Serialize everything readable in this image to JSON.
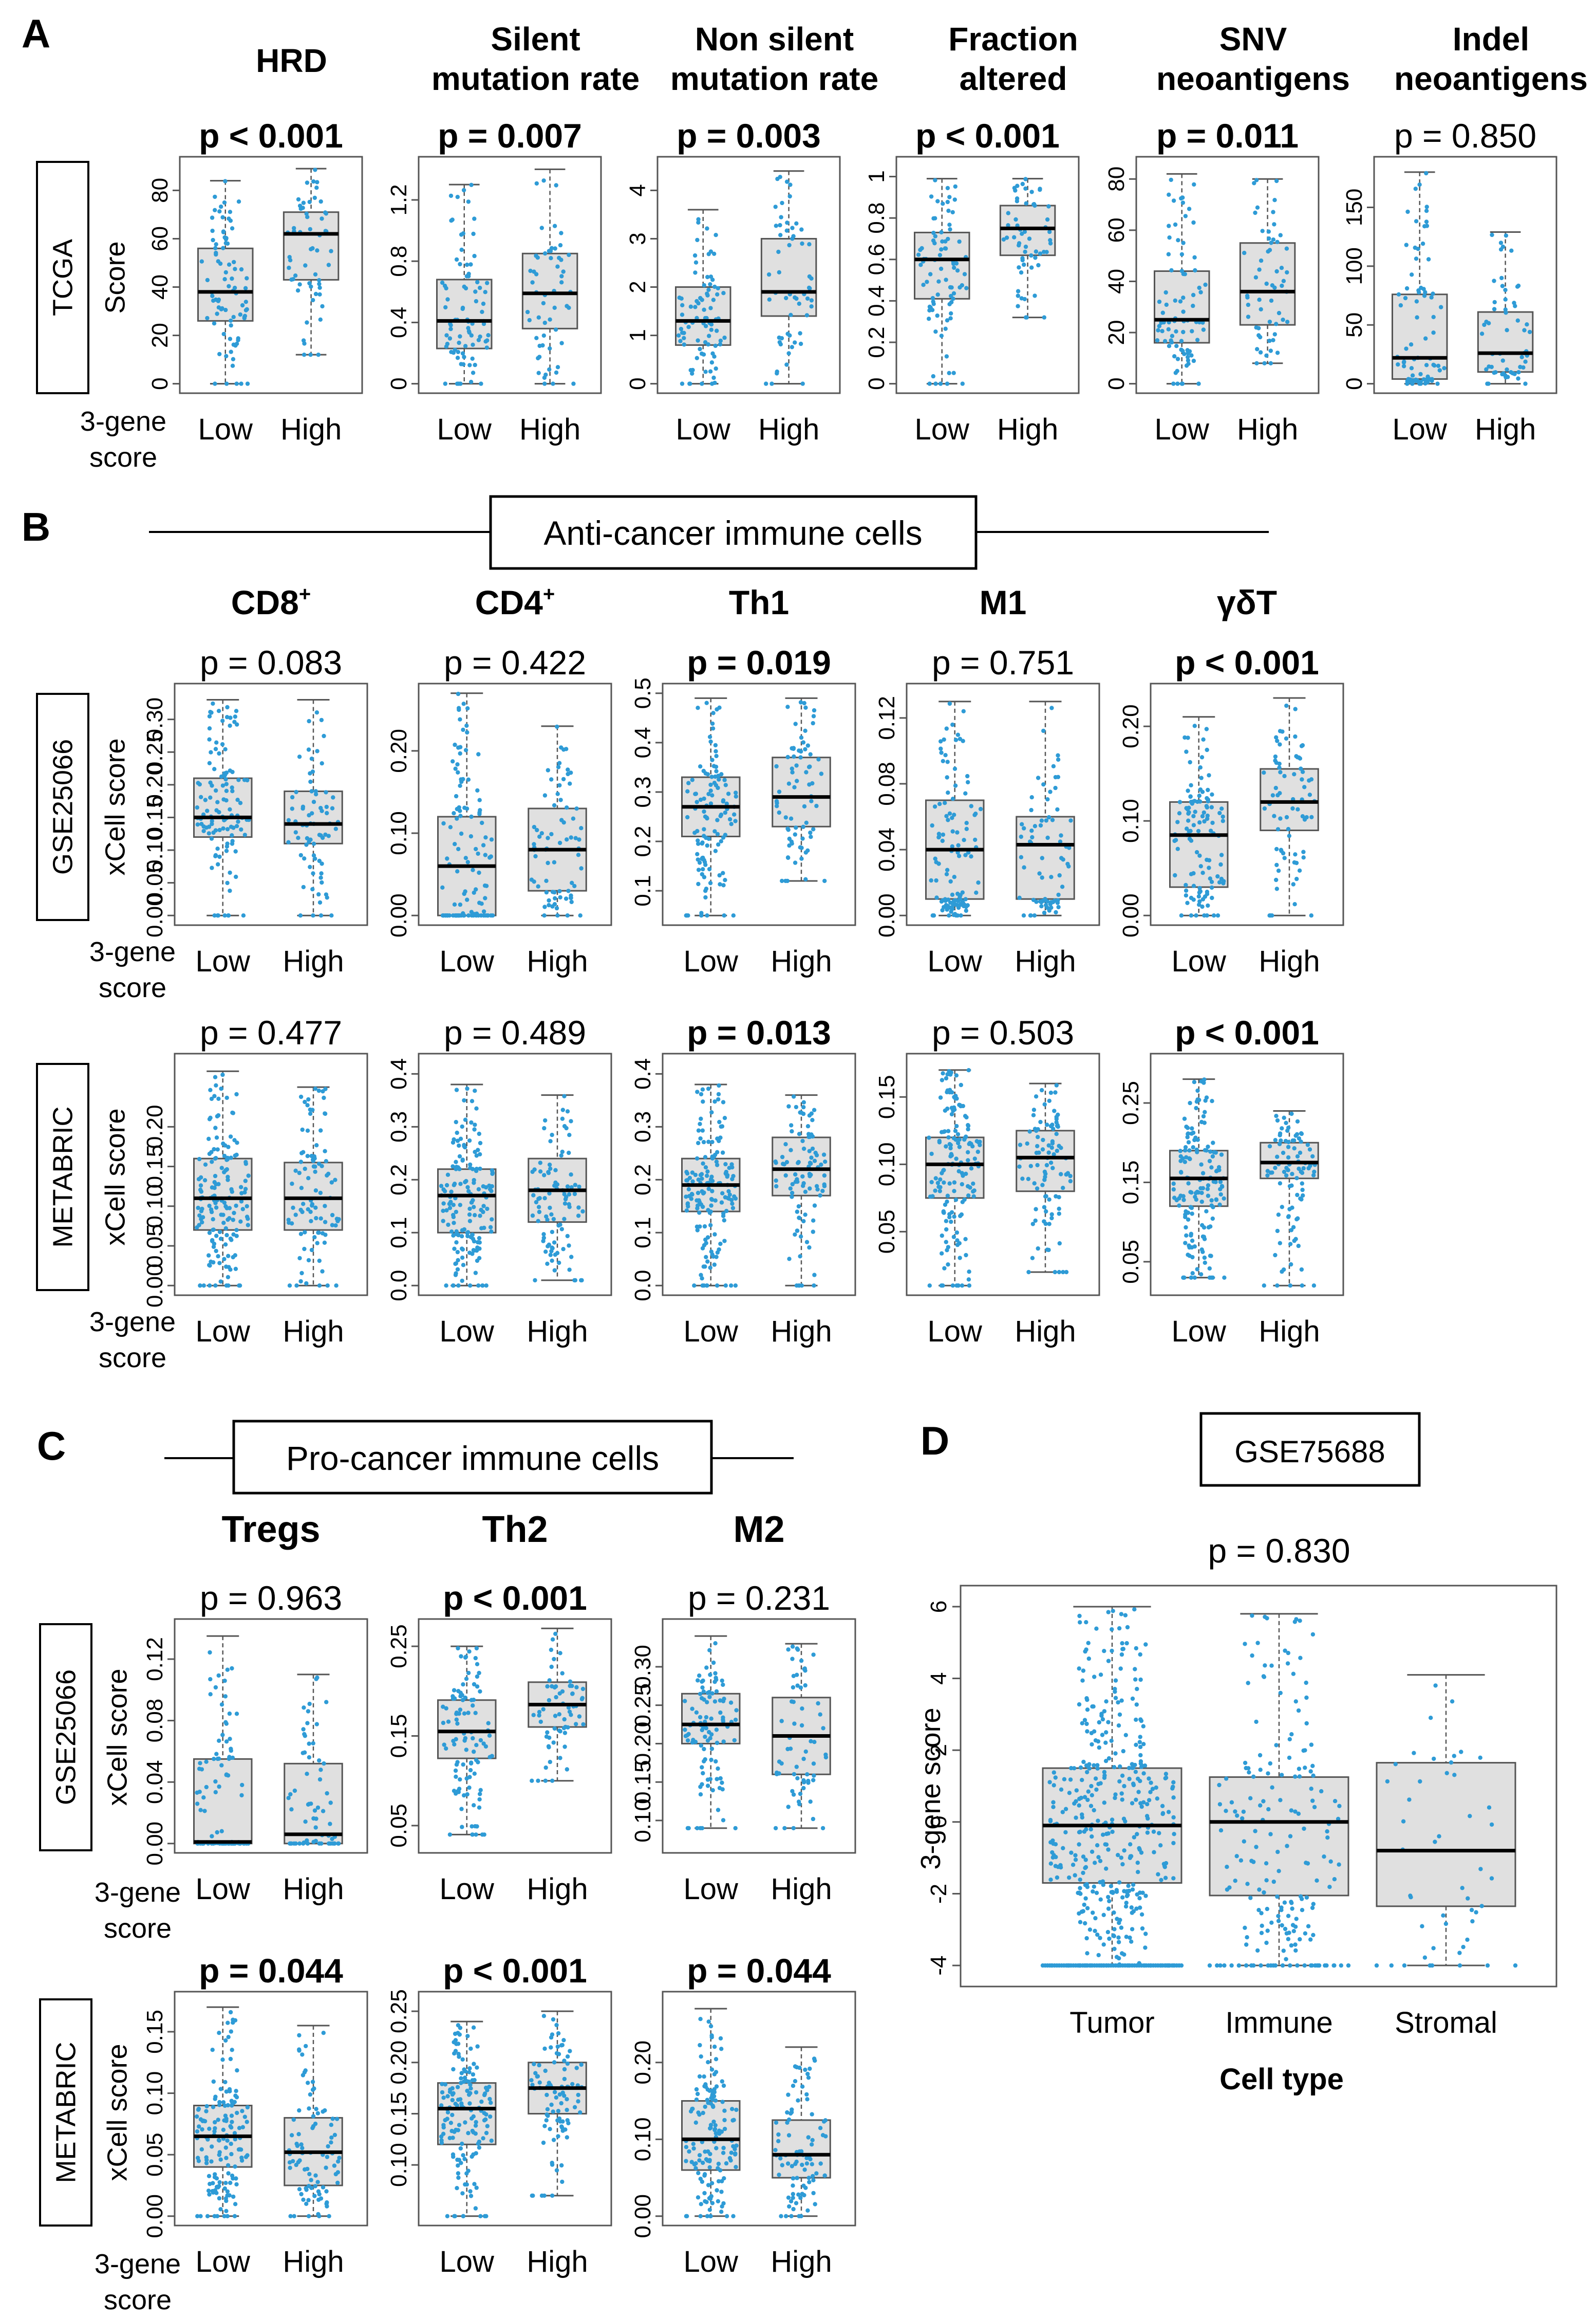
{
  "figure": {
    "palette": {
      "dot": "#2e9bd6",
      "box_fill": "#e0e0e0",
      "box_stroke": "#555555",
      "median": "#000000",
      "frame": "#555555",
      "text": "#000000"
    },
    "common": {
      "group_low": "Low",
      "group_high": "High",
      "gene_label_1": "3-gene",
      "gene_label_2": "score"
    },
    "panels": [
      {
        "letter": "A",
        "header": ""
      },
      {
        "letter": "B",
        "header": "Anti-cancer immune cells"
      },
      {
        "letter": "C",
        "header": "Pro-cancer immune cells"
      },
      {
        "letter": "D",
        "header": "GSE75688"
      }
    ],
    "row_labels": {
      "tcga": {
        "dataset": "TCGA",
        "ylabel": "Score"
      },
      "b_gse": {
        "dataset": "GSE25066",
        "ylabel": "xCell score"
      },
      "b_met": {
        "dataset": "METABRIC",
        "ylabel": "xCell score"
      },
      "c_gse": {
        "dataset": "GSE25066",
        "ylabel": "xCell score"
      },
      "c_met": {
        "dataset": "METABRIC",
        "ylabel": "xCell score"
      }
    },
    "titles": {
      "A": [
        [
          "HRD"
        ],
        [
          "Silent",
          "mutation rate"
        ],
        [
          "Non silent",
          "mutation rate"
        ],
        [
          "Fraction",
          "altered"
        ],
        [
          "SNV",
          "neoantigens"
        ],
        [
          "Indel",
          "neoantigens"
        ]
      ],
      "B": [
        [
          "CD8",
          "+"
        ],
        [
          "CD4",
          "+"
        ],
        [
          "Th1",
          ""
        ],
        [
          "M1",
          ""
        ],
        [
          "γδT",
          ""
        ]
      ],
      "C": [
        [
          "Tregs"
        ],
        [
          "Th2"
        ],
        [
          "M2"
        ]
      ]
    }
  },
  "chart_data": [
    {
      "type": "boxplot",
      "panel": "A",
      "dataset": "TCGA",
      "ylabel": "Score",
      "groups": [
        "Low",
        "High"
      ],
      "plots": [
        {
          "title": "HRD",
          "p": "p < 0.001",
          "significant": true,
          "ylim": [
            0,
            90
          ],
          "ticks": [
            0,
            20,
            40,
            60,
            80
          ],
          "low": {
            "min": 0,
            "q1": 26,
            "median": 38,
            "q3": 56,
            "max": 84
          },
          "high": {
            "min": 12,
            "q1": 43,
            "median": 62,
            "q3": 71,
            "max": 89
          }
        },
        {
          "title": "Silent mutation rate",
          "p": "p = 0.007",
          "significant": true,
          "ylim": [
            0,
            1.42
          ],
          "ticks": [
            0.0,
            0.4,
            0.8,
            1.2
          ],
          "low": {
            "min": 0.0,
            "q1": 0.23,
            "median": 0.41,
            "q3": 0.68,
            "max": 1.3
          },
          "high": {
            "min": 0.0,
            "q1": 0.36,
            "median": 0.59,
            "q3": 0.85,
            "max": 1.4
          }
        },
        {
          "title": "Non silent mutation rate",
          "p": "p = 0.003",
          "significant": true,
          "ylim": [
            0,
            4.5
          ],
          "ticks": [
            0,
            1,
            2,
            3,
            4
          ],
          "low": {
            "min": 0,
            "q1": 0.8,
            "median": 1.3,
            "q3": 2.0,
            "max": 3.6
          },
          "high": {
            "min": 0,
            "q1": 1.4,
            "median": 1.9,
            "q3": 3.0,
            "max": 4.4
          }
        },
        {
          "title": "Fraction altered",
          "p": "p < 0.001",
          "significant": true,
          "ylim": [
            0,
            1.05
          ],
          "ticks": [
            0.0,
            0.2,
            0.4,
            0.6,
            0.8,
            1.0
          ],
          "low": {
            "min": 0.0,
            "q1": 0.41,
            "median": 0.6,
            "q3": 0.73,
            "max": 0.99
          },
          "high": {
            "min": 0.32,
            "q1": 0.62,
            "median": 0.75,
            "q3": 0.86,
            "max": 0.99
          }
        },
        {
          "title": "SNV neoantigens",
          "p": "p = 0.011",
          "significant": true,
          "ylim": [
            0,
            85
          ],
          "ticks": [
            0,
            20,
            40,
            60,
            80
          ],
          "low": {
            "min": 0,
            "q1": 16,
            "median": 25,
            "q3": 44,
            "max": 82
          },
          "high": {
            "min": 8,
            "q1": 23,
            "median": 36,
            "q3": 55,
            "max": 80
          }
        },
        {
          "title": "Indel neoantigens",
          "p": "p = 0.850",
          "significant": false,
          "ylim": [
            0,
            185
          ],
          "ticks": [
            0,
            50,
            100,
            150
          ],
          "low": {
            "min": 0,
            "q1": 4,
            "median": 22,
            "q3": 76,
            "max": 180
          },
          "high": {
            "min": 0,
            "q1": 10,
            "median": 26,
            "q3": 61,
            "max": 129
          }
        }
      ]
    },
    {
      "type": "boxplot",
      "panel": "B",
      "dataset": "GSE25066",
      "ylabel": "xCell score",
      "groups": [
        "Low",
        "High"
      ],
      "plots": [
        {
          "title": "CD8+",
          "p": "p = 0.083",
          "significant": false,
          "ylim": [
            0,
            0.34
          ],
          "ticks": [
            0.0,
            0.05,
            0.1,
            0.15,
            0.2,
            0.25,
            0.3
          ],
          "tick_labels": [
            "0.00",
            "0.05",
            "0.10",
            "0.15",
            "0.20",
            "0.25",
            "0.30"
          ],
          "low": {
            "min": 0.0,
            "q1": 0.12,
            "median": 0.15,
            "q3": 0.21,
            "max": 0.33
          },
          "high": {
            "min": 0.0,
            "q1": 0.11,
            "median": 0.14,
            "q3": 0.19,
            "max": 0.33
          }
        },
        {
          "title": "CD4+",
          "p": "p = 0.422",
          "significant": false,
          "ylim": [
            0,
            0.27
          ],
          "ticks": [
            0.0,
            0.1,
            0.2
          ],
          "tick_labels": [
            "0.00",
            "0.10",
            "0.20"
          ],
          "low": {
            "min": 0.0,
            "q1": 0.0,
            "median": 0.06,
            "q3": 0.12,
            "max": 0.27
          },
          "high": {
            "min": 0.0,
            "q1": 0.03,
            "median": 0.08,
            "q3": 0.13,
            "max": 0.23
          }
        },
        {
          "title": "Th1",
          "p": "p = 0.019",
          "significant": true,
          "ylim": [
            0.05,
            0.5
          ],
          "ticks": [
            0.1,
            0.2,
            0.3,
            0.4,
            0.5
          ],
          "tick_labels": [
            "0.1",
            "0.2",
            "0.3",
            "0.4",
            "0.5"
          ],
          "low": {
            "min": 0.05,
            "q1": 0.21,
            "median": 0.27,
            "q3": 0.33,
            "max": 0.49
          },
          "high": {
            "min": 0.12,
            "q1": 0.23,
            "median": 0.29,
            "q3": 0.37,
            "max": 0.49
          }
        },
        {
          "title": "M1",
          "p": "p = 0.751",
          "significant": false,
          "ylim": [
            0,
            0.135
          ],
          "ticks": [
            0.0,
            0.04,
            0.08,
            0.12
          ],
          "tick_labels": [
            "0.00",
            "0.04",
            "0.08",
            "0.12"
          ],
          "low": {
            "min": 0.0,
            "q1": 0.01,
            "median": 0.04,
            "q3": 0.07,
            "max": 0.13
          },
          "high": {
            "min": 0.0,
            "q1": 0.01,
            "median": 0.043,
            "q3": 0.06,
            "max": 0.13
          }
        },
        {
          "title": "γδT",
          "p": "p < 0.001",
          "significant": true,
          "ylim": [
            0,
            0.235
          ],
          "ticks": [
            0.0,
            0.1,
            0.2
          ],
          "tick_labels": [
            "0.00",
            "0.10",
            "0.20"
          ],
          "low": {
            "min": 0.0,
            "q1": 0.03,
            "median": 0.085,
            "q3": 0.12,
            "max": 0.21
          },
          "high": {
            "min": 0.0,
            "q1": 0.09,
            "median": 0.12,
            "q3": 0.155,
            "max": 0.23
          }
        }
      ]
    },
    {
      "type": "boxplot",
      "panel": "B",
      "dataset": "METABRIC",
      "ylabel": "xCell score",
      "groups": [
        "Low",
        "High"
      ],
      "plots": [
        {
          "title": "CD8+",
          "p": "p = 0.477",
          "significant": false,
          "ylim": [
            0,
            0.28
          ],
          "ticks": [
            0.0,
            0.05,
            0.1,
            0.15,
            0.2
          ],
          "tick_labels": [
            "0.00",
            "0.05",
            "0.10",
            "0.15",
            "0.20"
          ],
          "low": {
            "min": 0.0,
            "q1": 0.07,
            "median": 0.11,
            "q3": 0.16,
            "max": 0.27
          },
          "high": {
            "min": 0.0,
            "q1": 0.07,
            "median": 0.11,
            "q3": 0.155,
            "max": 0.25
          }
        },
        {
          "title": "CD4+",
          "p": "p = 0.489",
          "significant": false,
          "ylim": [
            0,
            0.42
          ],
          "ticks": [
            0.0,
            0.1,
            0.2,
            0.3,
            0.4
          ],
          "tick_labels": [
            "0.0",
            "0.1",
            "0.2",
            "0.3",
            "0.4"
          ],
          "low": {
            "min": 0.0,
            "q1": 0.1,
            "median": 0.17,
            "q3": 0.22,
            "max": 0.38
          },
          "high": {
            "min": 0.01,
            "q1": 0.12,
            "median": 0.18,
            "q3": 0.24,
            "max": 0.36
          }
        },
        {
          "title": "Th1",
          "p": "p = 0.013",
          "significant": true,
          "ylim": [
            0,
            0.42
          ],
          "ticks": [
            0.0,
            0.1,
            0.2,
            0.3,
            0.4
          ],
          "tick_labels": [
            "0.0",
            "0.1",
            "0.2",
            "0.3",
            "0.4"
          ],
          "low": {
            "min": 0.0,
            "q1": 0.14,
            "median": 0.19,
            "q3": 0.24,
            "max": 0.38
          },
          "high": {
            "min": 0.0,
            "q1": 0.17,
            "median": 0.22,
            "q3": 0.28,
            "max": 0.36
          }
        },
        {
          "title": "M1",
          "p": "p = 0.503",
          "significant": false,
          "ylim": [
            0.01,
            0.175
          ],
          "ticks": [
            0.05,
            0.1,
            0.15
          ],
          "tick_labels": [
            "0.05",
            "0.10",
            "0.15"
          ],
          "low": {
            "min": 0.01,
            "q1": 0.075,
            "median": 0.1,
            "q3": 0.12,
            "max": 0.17
          },
          "high": {
            "min": 0.02,
            "q1": 0.08,
            "median": 0.105,
            "q3": 0.125,
            "max": 0.16
          }
        },
        {
          "title": "γδT",
          "p": "p < 0.001",
          "significant": true,
          "ylim": [
            0.02,
            0.3
          ],
          "ticks": [
            0.05,
            0.15,
            0.25
          ],
          "tick_labels": [
            "0.05",
            "0.15",
            "0.25"
          ],
          "low": {
            "min": 0.03,
            "q1": 0.12,
            "median": 0.155,
            "q3": 0.19,
            "max": 0.28
          },
          "high": {
            "min": 0.02,
            "q1": 0.155,
            "median": 0.175,
            "q3": 0.2,
            "max": 0.24
          }
        }
      ]
    },
    {
      "type": "boxplot",
      "panel": "C",
      "dataset": "GSE25066",
      "ylabel": "xCell score",
      "groups": [
        "Low",
        "High"
      ],
      "plots": [
        {
          "title": "Tregs",
          "p": "p = 0.963",
          "significant": false,
          "ylim": [
            0,
            0.14
          ],
          "ticks": [
            0.0,
            0.04,
            0.08,
            0.12
          ],
          "tick_labels": [
            "0.00",
            "0.04",
            "0.08",
            "0.12"
          ],
          "low": {
            "min": 0.0,
            "q1": 0.0,
            "median": 0.001,
            "q3": 0.055,
            "max": 0.135
          },
          "high": {
            "min": 0.0,
            "q1": 0.0,
            "median": 0.006,
            "q3": 0.052,
            "max": 0.11
          }
        },
        {
          "title": "Th2",
          "p": "p < 0.001",
          "significant": true,
          "ylim": [
            0.03,
            0.27
          ],
          "ticks": [
            0.05,
            0.15,
            0.25
          ],
          "tick_labels": [
            "0.05",
            "0.15",
            "0.25"
          ],
          "low": {
            "min": 0.04,
            "q1": 0.125,
            "median": 0.155,
            "q3": 0.19,
            "max": 0.25
          },
          "high": {
            "min": 0.1,
            "q1": 0.16,
            "median": 0.185,
            "q3": 0.21,
            "max": 0.27
          }
        },
        {
          "title": "M2",
          "p": "p = 0.231",
          "significant": false,
          "ylim": [
            0.07,
            0.35
          ],
          "ticks": [
            0.1,
            0.15,
            0.2,
            0.25,
            0.3
          ],
          "tick_labels": [
            "0.10",
            "0.15",
            "0.20",
            "0.25",
            "0.30"
          ],
          "low": {
            "min": 0.09,
            "q1": 0.2,
            "median": 0.225,
            "q3": 0.265,
            "max": 0.34
          },
          "high": {
            "min": 0.09,
            "q1": 0.16,
            "median": 0.21,
            "q3": 0.26,
            "max": 0.33
          }
        }
      ]
    },
    {
      "type": "boxplot",
      "panel": "C",
      "dataset": "METABRIC",
      "ylabel": "xCell score",
      "groups": [
        "Low",
        "High"
      ],
      "plots": [
        {
          "title": "Tregs",
          "p": "p = 0.044",
          "significant": true,
          "ylim": [
            0,
            0.175
          ],
          "ticks": [
            0.0,
            0.05,
            0.1,
            0.15
          ],
          "tick_labels": [
            "0.00",
            "0.05",
            "0.10",
            "0.15"
          ],
          "low": {
            "min": 0.0,
            "q1": 0.04,
            "median": 0.065,
            "q3": 0.09,
            "max": 0.17
          },
          "high": {
            "min": 0.0,
            "q1": 0.025,
            "median": 0.052,
            "q3": 0.08,
            "max": 0.155
          }
        },
        {
          "title": "Th2",
          "p": "p < 0.001",
          "significant": true,
          "ylim": [
            0.05,
            0.26
          ],
          "ticks": [
            0.1,
            0.15,
            0.2,
            0.25
          ],
          "tick_labels": [
            "0.10",
            "0.15",
            "0.20",
            "0.25"
          ],
          "low": {
            "min": 0.05,
            "q1": 0.12,
            "median": 0.155,
            "q3": 0.18,
            "max": 0.24
          },
          "high": {
            "min": 0.07,
            "q1": 0.15,
            "median": 0.175,
            "q3": 0.2,
            "max": 0.25
          }
        },
        {
          "title": "M2",
          "p": "p = 0.044",
          "significant": true,
          "ylim": [
            0,
            0.28
          ],
          "ticks": [
            0.0,
            0.1,
            0.2
          ],
          "tick_labels": [
            "0.00",
            "0.10",
            "0.20"
          ],
          "low": {
            "min": 0.0,
            "q1": 0.06,
            "median": 0.1,
            "q3": 0.15,
            "max": 0.27
          },
          "high": {
            "min": 0.0,
            "q1": 0.05,
            "median": 0.08,
            "q3": 0.125,
            "max": 0.22
          }
        }
      ]
    },
    {
      "type": "boxplot",
      "panel": "D",
      "dataset": "GSE75688",
      "title": "GSE75688",
      "p": "p = 0.830",
      "significant": false,
      "xlabel": "Cell type",
      "ylabel": "3-gene score",
      "ylim": [
        -4.3,
        6.3
      ],
      "ticks": [
        -4,
        -2,
        0,
        2,
        4,
        6
      ],
      "tick_labels": [
        "-4",
        "-2",
        "0",
        "2",
        "4",
        "6"
      ],
      "categories": [
        "Tumor",
        "Immune",
        "Stromal"
      ],
      "boxes": [
        {
          "min": -4.0,
          "q1": -1.7,
          "median": -0.1,
          "q3": 1.5,
          "max": 6.0
        },
        {
          "min": -4.0,
          "q1": -2.05,
          "median": 0.0,
          "q3": 1.25,
          "max": 5.8
        },
        {
          "min": -4.0,
          "q1": -2.35,
          "median": -0.8,
          "q3": 1.65,
          "max": 4.1
        }
      ]
    }
  ]
}
